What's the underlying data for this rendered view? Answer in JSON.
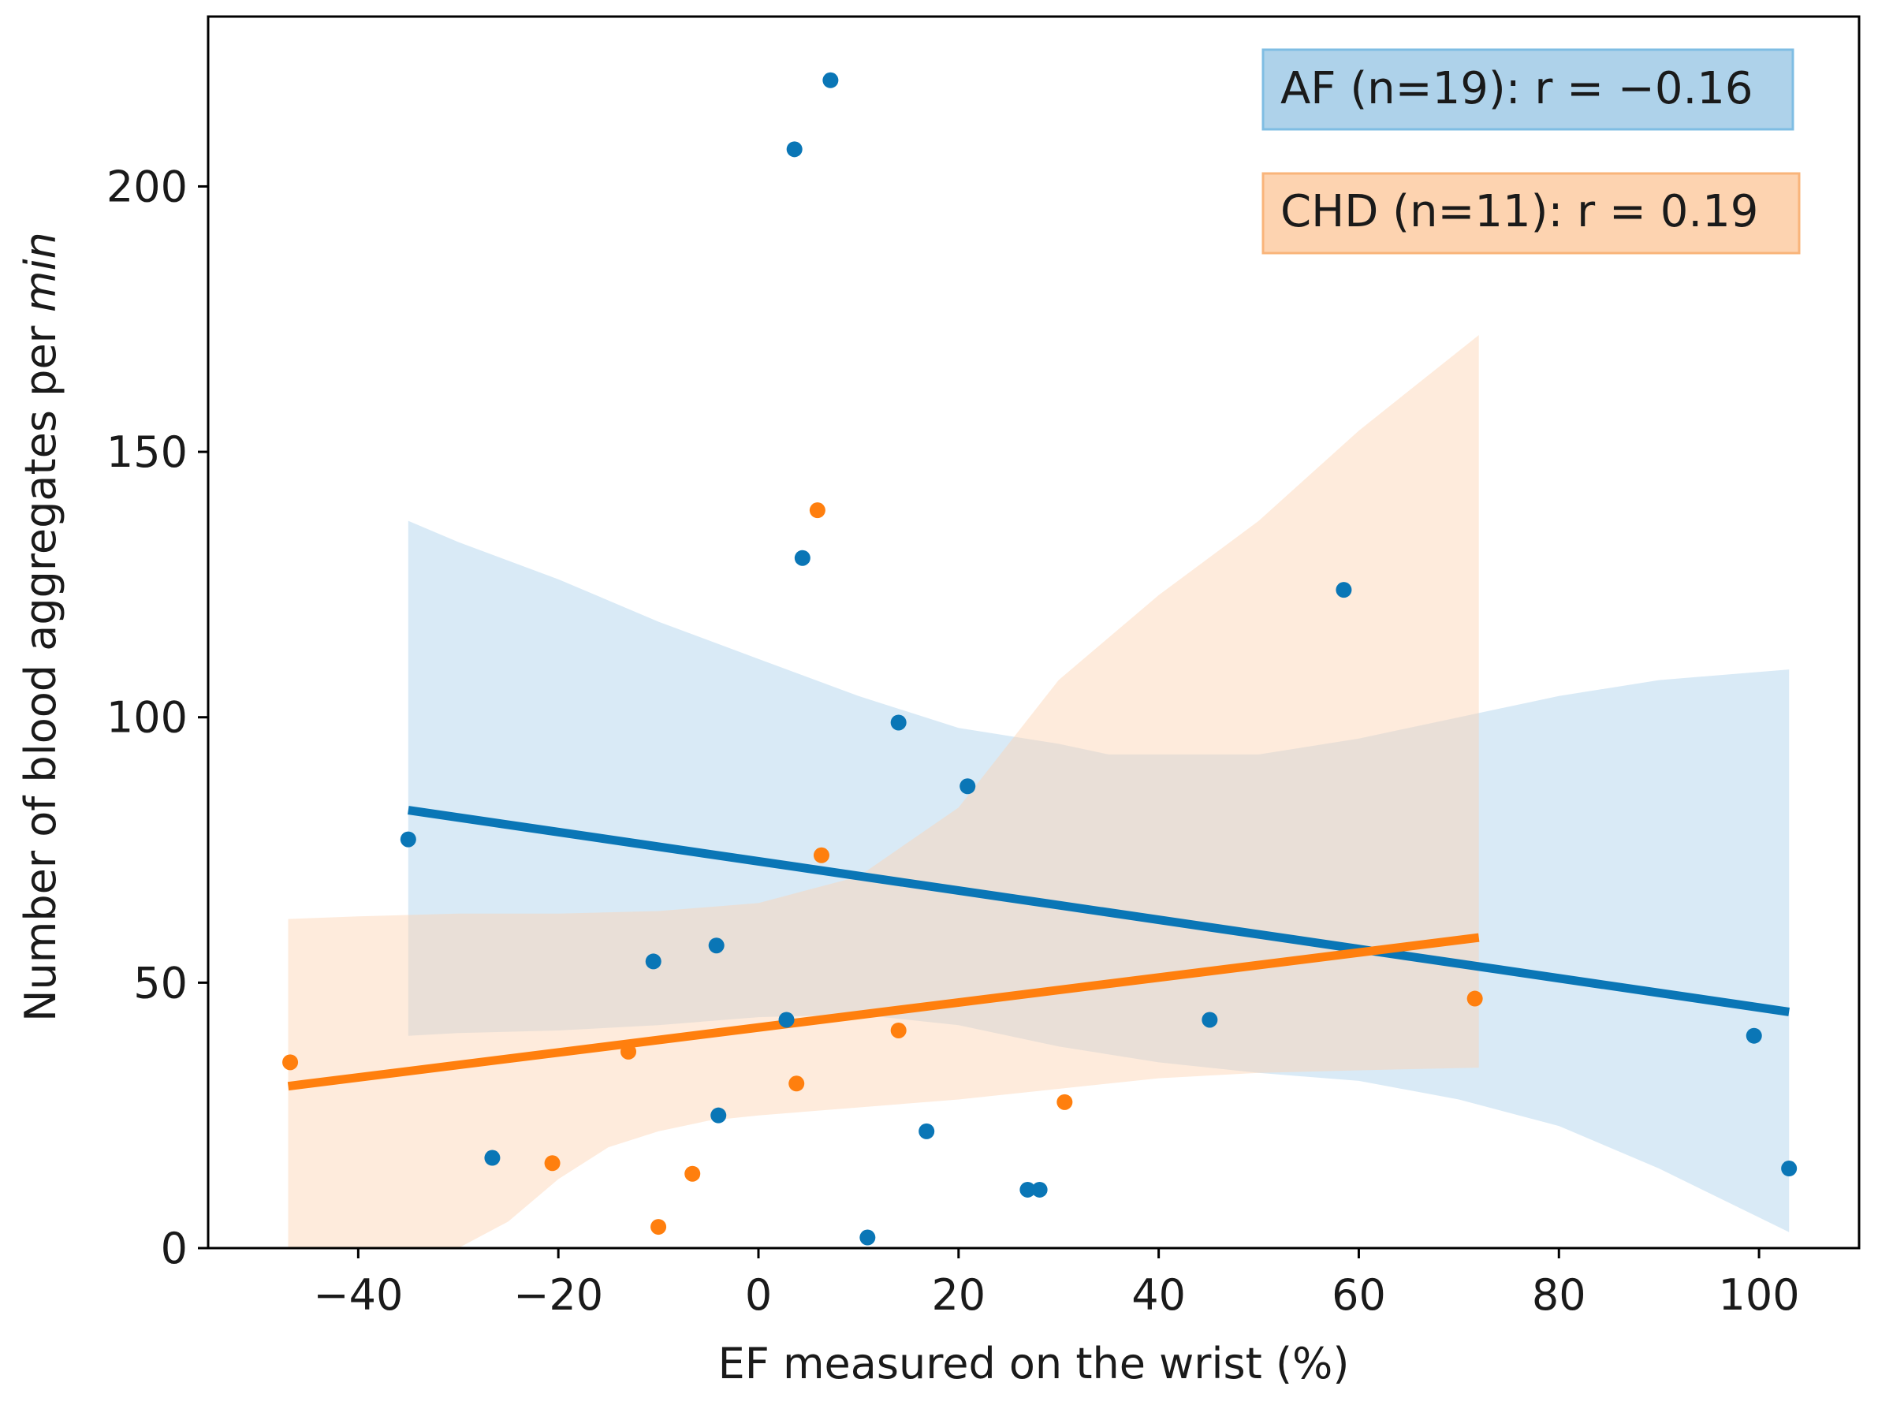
{
  "chart_data": {
    "type": "scatter",
    "xlabel": "EF measured on the wrist (%)",
    "ylabel_prefix": "Number of blood aggregates per ",
    "ylabel_italic": "min",
    "xlim": [
      -55,
      110
    ],
    "ylim": [
      0,
      232
    ],
    "xticks": [
      -40,
      -20,
      0,
      20,
      40,
      60,
      80,
      100
    ],
    "xtick_labels": [
      "−40",
      "−20",
      "0",
      "20",
      "40",
      "60",
      "80",
      "100"
    ],
    "yticks": [
      0,
      50,
      100,
      150,
      200
    ],
    "ytick_labels": [
      "0",
      "50",
      "100",
      "150",
      "200"
    ],
    "legend_position": "top-right",
    "series": [
      {
        "name": "AF",
        "label": "AF (n=19): r = −0.16",
        "color": "#0a76b6",
        "band_color": "#aad0ec",
        "points": [
          [
            -35,
            77
          ],
          [
            -26.6,
            17
          ],
          [
            -10.5,
            54
          ],
          [
            -4.2,
            57
          ],
          [
            -4,
            25
          ],
          [
            2.8,
            43
          ],
          [
            3.6,
            207
          ],
          [
            4.4,
            130
          ],
          [
            7.2,
            220
          ],
          [
            10.9,
            2
          ],
          [
            14,
            99
          ],
          [
            16.8,
            22
          ],
          [
            20.9,
            87
          ],
          [
            26.9,
            11
          ],
          [
            28.1,
            11
          ],
          [
            45.1,
            43
          ],
          [
            58.5,
            124
          ],
          [
            99.5,
            40
          ],
          [
            103,
            15
          ]
        ],
        "fit": [
          [
            -35,
            82.5
          ],
          [
            103,
            44.5
          ]
        ],
        "ci_upper": [
          [
            -35,
            137
          ],
          [
            -30,
            133
          ],
          [
            -20,
            126
          ],
          [
            -10,
            118
          ],
          [
            0,
            111
          ],
          [
            10,
            104
          ],
          [
            20,
            98
          ],
          [
            30,
            95
          ],
          [
            35,
            93
          ],
          [
            40,
            93
          ],
          [
            50,
            93
          ],
          [
            60,
            96
          ],
          [
            70,
            100
          ],
          [
            80,
            104
          ],
          [
            90,
            107
          ],
          [
            103,
            109
          ]
        ],
        "ci_lower": [
          [
            -35,
            40
          ],
          [
            -30,
            40.5
          ],
          [
            -20,
            41
          ],
          [
            -10,
            42
          ],
          [
            0,
            43.5
          ],
          [
            10,
            44
          ],
          [
            20,
            42
          ],
          [
            30,
            38
          ],
          [
            40,
            35
          ],
          [
            50,
            33
          ],
          [
            60,
            31.5
          ],
          [
            70,
            28
          ],
          [
            80,
            23
          ],
          [
            90,
            15
          ],
          [
            103,
            3
          ]
        ]
      },
      {
        "name": "CHD",
        "label": "CHD (n=11): r = 0.19",
        "color": "#ff7f0e",
        "band_color": "#fdd3b1",
        "points": [
          [
            -46.8,
            35
          ],
          [
            -20.6,
            16
          ],
          [
            -13,
            37
          ],
          [
            -10,
            4
          ],
          [
            -6.6,
            14
          ],
          [
            3.8,
            31
          ],
          [
            5.9,
            139
          ],
          [
            6.3,
            74
          ],
          [
            14,
            41
          ],
          [
            30.6,
            27.5
          ],
          [
            71.6,
            47
          ]
        ],
        "fit": [
          [
            -47,
            30.5
          ],
          [
            72,
            58.5
          ]
        ],
        "ci_upper": [
          [
            -47,
            62
          ],
          [
            -40,
            62.5
          ],
          [
            -30,
            63
          ],
          [
            -20,
            63
          ],
          [
            -10,
            63.5
          ],
          [
            0,
            65
          ],
          [
            10,
            70
          ],
          [
            20,
            83
          ],
          [
            25,
            95
          ],
          [
            30,
            107
          ],
          [
            40,
            123
          ],
          [
            50,
            137
          ],
          [
            60,
            154
          ],
          [
            72,
            172
          ]
        ],
        "ci_lower": [
          [
            -47,
            0
          ],
          [
            -30,
            0
          ],
          [
            -25,
            5
          ],
          [
            -20,
            13
          ],
          [
            -15,
            19
          ],
          [
            -10,
            22
          ],
          [
            -5,
            24
          ],
          [
            0,
            25
          ],
          [
            10,
            26.5
          ],
          [
            20,
            28
          ],
          [
            30,
            30
          ],
          [
            40,
            32
          ],
          [
            50,
            33
          ],
          [
            60,
            33.5
          ],
          [
            72,
            34
          ]
        ]
      }
    ]
  }
}
